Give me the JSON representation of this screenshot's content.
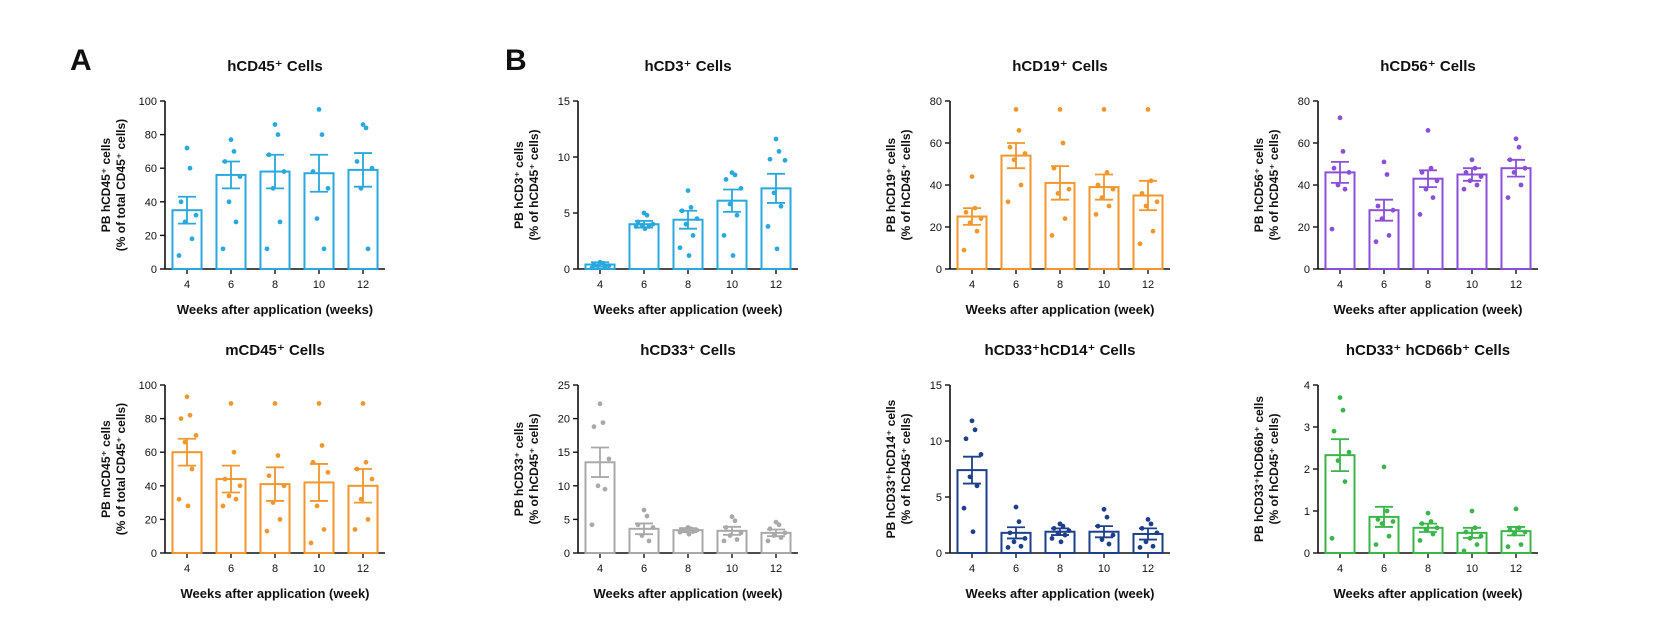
{
  "panel_labels": [
    "A",
    "B"
  ],
  "chart_data": [
    {
      "type": "bar",
      "title": "hCD45⁺ Cells",
      "xlabel": "Weeks after application (weeks)",
      "ylabel": [
        "PB hCD45⁺ cells",
        "(% of total CD45⁺ cells)"
      ],
      "color": "#29a8dd",
      "categories": [
        "4",
        "6",
        "8",
        "10",
        "12"
      ],
      "ylim": [
        0,
        100
      ],
      "yticks": [
        0,
        20,
        40,
        60,
        80,
        100
      ],
      "values": [
        35,
        56,
        58,
        57,
        59
      ],
      "sem": [
        8,
        8,
        10,
        11,
        10
      ],
      "points": [
        [
          72,
          60,
          40,
          32,
          28,
          18,
          8
        ],
        [
          77,
          70,
          64,
          55,
          40,
          28,
          12
        ],
        [
          86,
          80,
          68,
          58,
          48,
          28,
          12
        ],
        [
          95,
          80,
          58,
          48,
          30,
          12
        ],
        [
          86,
          84,
          64,
          60,
          48,
          12
        ]
      ]
    },
    {
      "type": "bar",
      "title": "hCD3⁺ Cells",
      "xlabel": "Weeks after application (week)",
      "ylabel": [
        "PB hCD3⁺ cells",
        "(% of hCD45⁺ cells)"
      ],
      "color": "#29a8dd",
      "categories": [
        "4",
        "6",
        "8",
        "10",
        "12"
      ],
      "ylim": [
        0,
        15
      ],
      "yticks": [
        0,
        5,
        10,
        15
      ],
      "values": [
        0.4,
        4.0,
        4.4,
        6.1,
        7.2
      ],
      "sem": [
        0.2,
        0.3,
        0.8,
        1.0,
        1.3
      ],
      "points": [
        [
          0.6,
          0.5,
          0.4,
          0.3,
          0.3,
          0.2,
          0.1
        ],
        [
          5.0,
          4.8,
          4.2,
          4.0,
          3.9,
          3.8,
          3.8,
          3.6
        ],
        [
          7.0,
          5.5,
          5.2,
          4.5,
          4.0,
          3.0,
          1.9,
          1.2
        ],
        [
          8.6,
          8.4,
          8.0,
          7.2,
          5.8,
          4.8,
          3.0,
          1.2
        ],
        [
          11.6,
          10.5,
          9.8,
          9.7,
          6.8,
          5.6,
          3.8,
          1.8
        ]
      ]
    },
    {
      "type": "bar",
      "title": "hCD19⁺ Cells",
      "xlabel": "Weeks after application (week)",
      "ylabel": [
        "PB hCD19⁺ cells",
        "(% of hCD45⁺ cells)"
      ],
      "color": "#f2962e",
      "categories": [
        "4",
        "6",
        "8",
        "10",
        "12"
      ],
      "ylim": [
        0,
        80
      ],
      "yticks": [
        0,
        20,
        40,
        60,
        80
      ],
      "values": [
        25,
        54,
        41,
        39,
        35
      ],
      "sem": [
        4,
        6,
        8,
        6,
        7
      ],
      "points": [
        [
          44,
          29,
          27,
          24,
          22,
          18,
          9
        ],
        [
          76,
          66,
          58,
          55,
          52,
          40,
          32
        ],
        [
          76,
          60,
          48,
          38,
          36,
          24,
          16
        ],
        [
          76,
          46,
          40,
          38,
          34,
          30,
          26
        ],
        [
          76,
          42,
          36,
          32,
          30,
          18,
          12
        ]
      ]
    },
    {
      "type": "bar",
      "title": "hCD56⁺ Cells",
      "xlabel": "Weeks after application (week)",
      "ylabel": [
        "PB hCD56⁺ cells",
        "(% of hCD45⁺ cells)"
      ],
      "color": "#8a4fd8",
      "categories": [
        "4",
        "6",
        "8",
        "10",
        "12"
      ],
      "ylim": [
        0,
        80
      ],
      "yticks": [
        0,
        20,
        40,
        60,
        80
      ],
      "values": [
        46,
        28,
        43,
        45,
        48
      ],
      "sem": [
        5,
        5,
        4,
        3,
        4
      ],
      "points": [
        [
          72,
          56,
          48,
          46,
          40,
          38,
          19
        ],
        [
          51,
          45,
          30,
          28,
          24,
          16,
          13
        ],
        [
          66,
          48,
          46,
          42,
          38,
          34,
          26
        ],
        [
          52,
          48,
          46,
          44,
          42,
          40,
          38
        ],
        [
          62,
          58,
          52,
          48,
          46,
          40,
          34
        ]
      ]
    },
    {
      "type": "bar",
      "title": "mCD45⁺ Cells",
      "xlabel": "Weeks after application (week)",
      "ylabel": [
        "PB mCD45⁺ cells",
        "(% of total CD45⁺ cells)"
      ],
      "color": "#f2962e",
      "categories": [
        "4",
        "6",
        "8",
        "10",
        "12"
      ],
      "ylim": [
        0,
        100
      ],
      "yticks": [
        0,
        20,
        40,
        60,
        80,
        100
      ],
      "values": [
        60,
        44,
        41,
        42,
        40
      ],
      "sem": [
        8,
        8,
        10,
        11,
        10
      ],
      "points": [
        [
          93,
          82,
          80,
          70,
          66,
          50,
          32,
          28
        ],
        [
          89,
          60,
          44,
          40,
          34,
          32,
          28
        ],
        [
          89,
          58,
          46,
          40,
          30,
          20,
          13
        ],
        [
          89,
          64,
          54,
          48,
          28,
          14,
          6
        ],
        [
          89,
          54,
          50,
          44,
          32,
          20,
          14
        ]
      ]
    },
    {
      "type": "bar",
      "title": "hCD33⁺ Cells",
      "xlabel": "Weeks after application (week)",
      "ylabel": [
        "PB hCD33⁺ cells",
        "(% of hCD45⁺ cells)"
      ],
      "color": "#a9a9a9",
      "categories": [
        "4",
        "6",
        "8",
        "10",
        "12"
      ],
      "ylim": [
        0,
        25
      ],
      "yticks": [
        0,
        5,
        10,
        15,
        20,
        25
      ],
      "values": [
        13.5,
        3.6,
        3.4,
        3.3,
        3.0
      ],
      "sem": [
        2.2,
        0.8,
        0.3,
        0.6,
        0.5
      ],
      "points": [
        [
          22.2,
          19.4,
          18.8,
          14.0,
          10.0,
          9.5,
          4.2
        ],
        [
          6.4,
          5.5,
          4.2,
          3.8,
          2.6,
          1.8
        ],
        [
          3.8,
          3.6,
          3.5,
          3.4,
          3.3,
          3.2,
          3.1,
          2.8
        ],
        [
          5.4,
          4.8,
          3.8,
          3.0,
          2.6,
          2.0,
          1.8
        ],
        [
          4.6,
          4.2,
          3.6,
          3.0,
          2.6,
          2.3,
          1.8
        ]
      ]
    },
    {
      "type": "bar",
      "title": "hCD33⁺hCD14⁺ Cells",
      "xlabel": "Weeks after application (week)",
      "ylabel": [
        "PB hCD33⁺hCD14⁺ cells",
        "(% of hCD45⁺ cells)"
      ],
      "color": "#1e3f8a",
      "categories": [
        "4",
        "6",
        "8",
        "10",
        "12"
      ],
      "ylim": [
        0,
        15
      ],
      "yticks": [
        0,
        5,
        10,
        15
      ],
      "values": [
        7.4,
        1.8,
        1.9,
        1.9,
        1.7
      ],
      "sem": [
        1.2,
        0.5,
        0.3,
        0.5,
        0.5
      ],
      "points": [
        [
          11.8,
          11.0,
          10.2,
          8.8,
          6.8,
          6.0,
          4.0,
          1.9
        ],
        [
          4.1,
          2.8,
          1.8,
          1.3,
          1.0,
          0.6,
          0.5
        ],
        [
          2.6,
          2.4,
          2.2,
          2.0,
          1.8,
          1.6,
          1.3,
          1.0
        ],
        [
          3.9,
          3.2,
          2.4,
          1.6,
          1.2,
          0.8
        ],
        [
          3.0,
          2.6,
          2.2,
          1.8,
          1.0,
          0.6,
          0.5
        ]
      ]
    },
    {
      "type": "bar",
      "title": "hCD33⁺ hCD66b⁺ Cells",
      "xlabel": "Weeks after application (week)",
      "ylabel": [
        "PB hCD33⁺hCD66b⁺ cells",
        "(% of hCD45⁺ cells)"
      ],
      "color": "#3bb54a",
      "categories": [
        "4",
        "6",
        "8",
        "10",
        "12"
      ],
      "ylim": [
        0,
        4
      ],
      "yticks": [
        0,
        1,
        2,
        3,
        4
      ],
      "values": [
        2.33,
        0.86,
        0.6,
        0.48,
        0.52
      ],
      "sem": [
        0.38,
        0.24,
        0.1,
        0.12,
        0.1
      ],
      "points": [
        [
          3.7,
          3.4,
          2.9,
          2.4,
          2.2,
          1.7,
          0.35
        ],
        [
          2.05,
          1.0,
          0.8,
          0.75,
          0.7,
          0.4,
          0.2
        ],
        [
          0.95,
          0.75,
          0.7,
          0.6,
          0.55,
          0.45,
          0.3
        ],
        [
          1.0,
          0.6,
          0.5,
          0.4,
          0.35,
          0.2,
          0.05
        ],
        [
          1.05,
          0.6,
          0.55,
          0.5,
          0.45,
          0.2,
          0.15
        ]
      ]
    }
  ]
}
